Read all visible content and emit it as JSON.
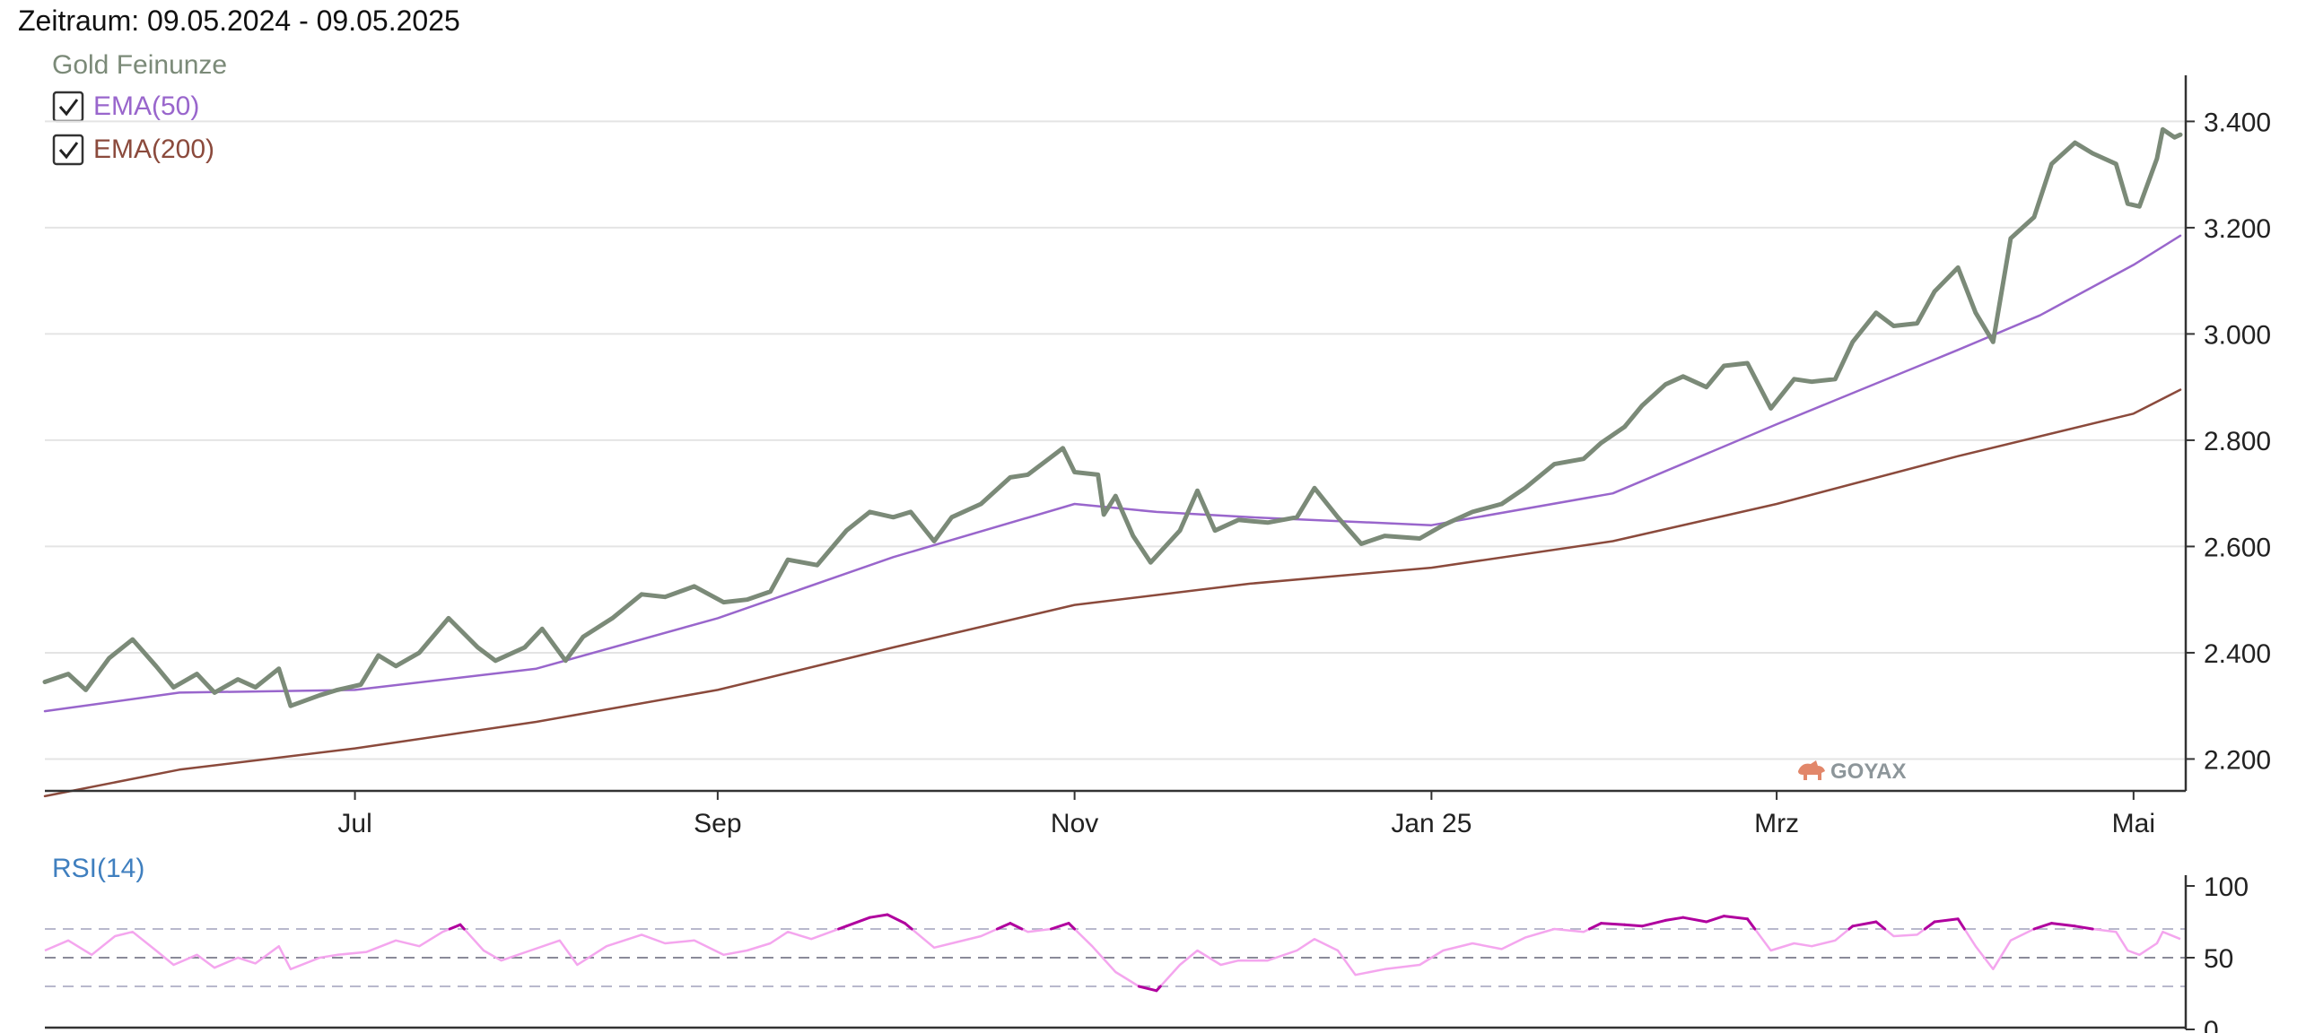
{
  "header": {
    "period": "Zeitraum: 09.05.2024 - 09.05.2025"
  },
  "legend": {
    "main": {
      "label": "Gold Feinunze",
      "color": "#7b8a78"
    },
    "items": [
      {
        "label": "EMA(50)",
        "color": "#9966cc",
        "checked": true
      },
      {
        "label": "EMA(200)",
        "color": "#8b4a3c",
        "checked": true
      }
    ]
  },
  "watermark": {
    "text": "GOYAX",
    "icon": "bull-icon"
  },
  "chart_data": [
    {
      "type": "line",
      "xlim": [
        "2024-05-09",
        "2025-05-09"
      ],
      "ylim": [
        2140,
        3480
      ],
      "y_ticks": [
        2200,
        2400,
        2600,
        2800,
        3000,
        3200,
        3400
      ],
      "y_tick_labels": [
        "2.200",
        "2.400",
        "2.600",
        "2.800",
        "3.000",
        "3.200",
        "3.400"
      ],
      "x_ticks": [
        {
          "date": "2024-07-01",
          "label": "Jul"
        },
        {
          "date": "2024-09-01",
          "label": "Sep"
        },
        {
          "date": "2024-11-01",
          "label": "Nov"
        },
        {
          "date": "2025-01-01",
          "label": "Jan 25"
        },
        {
          "date": "2025-03-01",
          "label": "Mrz"
        },
        {
          "date": "2025-05-01",
          "label": "Mai"
        }
      ],
      "grid": true,
      "legend_position": "top-left",
      "series": [
        {
          "name": "Gold Feinunze",
          "color": "#7b8a78",
          "points": [
            [
              "2024-05-09",
              2345
            ],
            [
              "2024-05-13",
              2360
            ],
            [
              "2024-05-16",
              2330
            ],
            [
              "2024-05-20",
              2390
            ],
            [
              "2024-05-24",
              2425
            ],
            [
              "2024-05-28",
              2375
            ],
            [
              "2024-05-31",
              2335
            ],
            [
              "2024-06-04",
              2360
            ],
            [
              "2024-06-07",
              2325
            ],
            [
              "2024-06-11",
              2350
            ],
            [
              "2024-06-14",
              2335
            ],
            [
              "2024-06-18",
              2370
            ],
            [
              "2024-06-20",
              2300
            ],
            [
              "2024-06-25",
              2320
            ],
            [
              "2024-06-28",
              2330
            ],
            [
              "2024-07-02",
              2340
            ],
            [
              "2024-07-05",
              2395
            ],
            [
              "2024-07-08",
              2375
            ],
            [
              "2024-07-12",
              2400
            ],
            [
              "2024-07-17",
              2465
            ],
            [
              "2024-07-22",
              2410
            ],
            [
              "2024-07-25",
              2385
            ],
            [
              "2024-07-30",
              2410
            ],
            [
              "2024-08-02",
              2445
            ],
            [
              "2024-08-06",
              2385
            ],
            [
              "2024-08-09",
              2430
            ],
            [
              "2024-08-14",
              2465
            ],
            [
              "2024-08-19",
              2510
            ],
            [
              "2024-08-23",
              2505
            ],
            [
              "2024-08-28",
              2525
            ],
            [
              "2024-09-02",
              2495
            ],
            [
              "2024-09-06",
              2500
            ],
            [
              "2024-09-10",
              2515
            ],
            [
              "2024-09-13",
              2575
            ],
            [
              "2024-09-18",
              2565
            ],
            [
              "2024-09-23",
              2630
            ],
            [
              "2024-09-27",
              2665
            ],
            [
              "2024-10-01",
              2655
            ],
            [
              "2024-10-04",
              2665
            ],
            [
              "2024-10-08",
              2610
            ],
            [
              "2024-10-11",
              2655
            ],
            [
              "2024-10-16",
              2680
            ],
            [
              "2024-10-21",
              2730
            ],
            [
              "2024-10-24",
              2735
            ],
            [
              "2024-10-30",
              2785
            ],
            [
              "2024-11-01",
              2740
            ],
            [
              "2024-11-05",
              2735
            ],
            [
              "2024-11-06",
              2660
            ],
            [
              "2024-11-08",
              2695
            ],
            [
              "2024-11-11",
              2620
            ],
            [
              "2024-11-14",
              2570
            ],
            [
              "2024-11-19",
              2630
            ],
            [
              "2024-11-22",
              2705
            ],
            [
              "2024-11-25",
              2630
            ],
            [
              "2024-11-29",
              2650
            ],
            [
              "2024-12-04",
              2645
            ],
            [
              "2024-12-09",
              2655
            ],
            [
              "2024-12-12",
              2710
            ],
            [
              "2024-12-16",
              2655
            ],
            [
              "2024-12-20",
              2605
            ],
            [
              "2024-12-24",
              2620
            ],
            [
              "2024-12-30",
              2615
            ],
            [
              "2025-01-03",
              2640
            ],
            [
              "2025-01-08",
              2665
            ],
            [
              "2025-01-13",
              2680
            ],
            [
              "2025-01-17",
              2710
            ],
            [
              "2025-01-22",
              2755
            ],
            [
              "2025-01-27",
              2765
            ],
            [
              "2025-01-30",
              2795
            ],
            [
              "2025-02-03",
              2825
            ],
            [
              "2025-02-06",
              2865
            ],
            [
              "2025-02-10",
              2905
            ],
            [
              "2025-02-13",
              2920
            ],
            [
              "2025-02-17",
              2900
            ],
            [
              "2025-02-20",
              2940
            ],
            [
              "2025-02-24",
              2945
            ],
            [
              "2025-02-28",
              2860
            ],
            [
              "2025-03-04",
              2915
            ],
            [
              "2025-03-07",
              2910
            ],
            [
              "2025-03-11",
              2915
            ],
            [
              "2025-03-14",
              2985
            ],
            [
              "2025-03-18",
              3040
            ],
            [
              "2025-03-21",
              3015
            ],
            [
              "2025-03-25",
              3020
            ],
            [
              "2025-03-28",
              3080
            ],
            [
              "2025-04-01",
              3125
            ],
            [
              "2025-04-04",
              3040
            ],
            [
              "2025-04-07",
              2985
            ],
            [
              "2025-04-10",
              3180
            ],
            [
              "2025-04-14",
              3220
            ],
            [
              "2025-04-17",
              3320
            ],
            [
              "2025-04-21",
              3360
            ],
            [
              "2025-04-24",
              3340
            ],
            [
              "2025-04-28",
              3320
            ],
            [
              "2025-04-30",
              3245
            ],
            [
              "2025-05-02",
              3240
            ],
            [
              "2025-05-05",
              3330
            ],
            [
              "2025-05-06",
              3385
            ],
            [
              "2025-05-08",
              3370
            ],
            [
              "2025-05-09",
              3375
            ]
          ]
        },
        {
          "name": "EMA(50)",
          "color": "#9966cc",
          "points": [
            [
              "2024-05-09",
              2290
            ],
            [
              "2024-06-01",
              2325
            ],
            [
              "2024-07-01",
              2330
            ],
            [
              "2024-08-01",
              2370
            ],
            [
              "2024-09-01",
              2465
            ],
            [
              "2024-10-01",
              2580
            ],
            [
              "2024-11-01",
              2680
            ],
            [
              "2024-11-15",
              2665
            ],
            [
              "2024-12-01",
              2655
            ],
            [
              "2025-01-01",
              2640
            ],
            [
              "2025-02-01",
              2700
            ],
            [
              "2025-03-01",
              2830
            ],
            [
              "2025-04-01",
              2970
            ],
            [
              "2025-04-15",
              3035
            ],
            [
              "2025-05-01",
              3130
            ],
            [
              "2025-05-09",
              3185
            ]
          ]
        },
        {
          "name": "EMA(200)",
          "color": "#8b4a3c",
          "points": [
            [
              "2024-05-09",
              2130
            ],
            [
              "2024-06-01",
              2180
            ],
            [
              "2024-07-01",
              2220
            ],
            [
              "2024-08-01",
              2270
            ],
            [
              "2024-09-01",
              2330
            ],
            [
              "2024-10-01",
              2410
            ],
            [
              "2024-11-01",
              2490
            ],
            [
              "2024-12-01",
              2530
            ],
            [
              "2025-01-01",
              2560
            ],
            [
              "2025-02-01",
              2610
            ],
            [
              "2025-03-01",
              2680
            ],
            [
              "2025-04-01",
              2770
            ],
            [
              "2025-05-01",
              2850
            ],
            [
              "2025-05-09",
              2895
            ]
          ]
        }
      ]
    },
    {
      "type": "line",
      "title": "RSI(14)",
      "xlim": [
        "2024-05-09",
        "2025-05-09"
      ],
      "ylim": [
        0,
        100
      ],
      "y_ticks": [
        0,
        50,
        100
      ],
      "y_tick_labels": [
        "0",
        "50",
        "100"
      ],
      "reference_lines": [
        30,
        50,
        70
      ],
      "overbought": 70,
      "oversold": 30,
      "series": [
        {
          "name": "RSI(14)",
          "color": "#f4a6ee",
          "extreme_color": "#b0009e",
          "points": [
            [
              "2024-05-09",
              55
            ],
            [
              "2024-05-13",
              62
            ],
            [
              "2024-05-17",
              52
            ],
            [
              "2024-05-21",
              65
            ],
            [
              "2024-05-24",
              68
            ],
            [
              "2024-05-28",
              55
            ],
            [
              "2024-05-31",
              45
            ],
            [
              "2024-06-04",
              52
            ],
            [
              "2024-06-07",
              43
            ],
            [
              "2024-06-11",
              50
            ],
            [
              "2024-06-14",
              46
            ],
            [
              "2024-06-18",
              58
            ],
            [
              "2024-06-20",
              42
            ],
            [
              "2024-06-25",
              50
            ],
            [
              "2024-06-28",
              52
            ],
            [
              "2024-07-03",
              54
            ],
            [
              "2024-07-08",
              62
            ],
            [
              "2024-07-12",
              58
            ],
            [
              "2024-07-16",
              68
            ],
            [
              "2024-07-19",
              73
            ],
            [
              "2024-07-23",
              55
            ],
            [
              "2024-07-26",
              48
            ],
            [
              "2024-07-31",
              55
            ],
            [
              "2024-08-05",
              62
            ],
            [
              "2024-08-08",
              45
            ],
            [
              "2024-08-13",
              58
            ],
            [
              "2024-08-19",
              66
            ],
            [
              "2024-08-23",
              60
            ],
            [
              "2024-08-28",
              62
            ],
            [
              "2024-09-02",
              52
            ],
            [
              "2024-09-06",
              55
            ],
            [
              "2024-09-10",
              60
            ],
            [
              "2024-09-13",
              68
            ],
            [
              "2024-09-17",
              63
            ],
            [
              "2024-09-23",
              72
            ],
            [
              "2024-09-27",
              78
            ],
            [
              "2024-09-30",
              80
            ],
            [
              "2024-10-03",
              74
            ],
            [
              "2024-10-08",
              57
            ],
            [
              "2024-10-11",
              60
            ],
            [
              "2024-10-16",
              65
            ],
            [
              "2024-10-21",
              74
            ],
            [
              "2024-10-24",
              68
            ],
            [
              "2024-10-28",
              70
            ],
            [
              "2024-10-31",
              74
            ],
            [
              "2024-11-04",
              58
            ],
            [
              "2024-11-08",
              40
            ],
            [
              "2024-11-12",
              30
            ],
            [
              "2024-11-15",
              27
            ],
            [
              "2024-11-19",
              45
            ],
            [
              "2024-11-22",
              55
            ],
            [
              "2024-11-26",
              45
            ],
            [
              "2024-11-29",
              48
            ],
            [
              "2024-12-04",
              48
            ],
            [
              "2024-12-09",
              55
            ],
            [
              "2024-12-12",
              63
            ],
            [
              "2024-12-16",
              55
            ],
            [
              "2024-12-19",
              38
            ],
            [
              "2024-12-24",
              42
            ],
            [
              "2024-12-30",
              45
            ],
            [
              "2025-01-03",
              55
            ],
            [
              "2025-01-08",
              60
            ],
            [
              "2025-01-13",
              56
            ],
            [
              "2025-01-17",
              64
            ],
            [
              "2025-01-22",
              70
            ],
            [
              "2025-01-27",
              68
            ],
            [
              "2025-01-30",
              74
            ],
            [
              "2025-02-03",
              73
            ],
            [
              "2025-02-06",
              72
            ],
            [
              "2025-02-10",
              76
            ],
            [
              "2025-02-13",
              78
            ],
            [
              "2025-02-17",
              75
            ],
            [
              "2025-02-20",
              79
            ],
            [
              "2025-02-24",
              77
            ],
            [
              "2025-02-28",
              55
            ],
            [
              "2025-03-04",
              60
            ],
            [
              "2025-03-07",
              58
            ],
            [
              "2025-03-11",
              62
            ],
            [
              "2025-03-14",
              72
            ],
            [
              "2025-03-18",
              75
            ],
            [
              "2025-03-21",
              65
            ],
            [
              "2025-03-25",
              66
            ],
            [
              "2025-03-28",
              75
            ],
            [
              "2025-04-01",
              77
            ],
            [
              "2025-04-04",
              58
            ],
            [
              "2025-04-07",
              42
            ],
            [
              "2025-04-10",
              62
            ],
            [
              "2025-04-14",
              70
            ],
            [
              "2025-04-17",
              74
            ],
            [
              "2025-04-21",
              72
            ],
            [
              "2025-04-24",
              70
            ],
            [
              "2025-04-28",
              68
            ],
            [
              "2025-04-30",
              55
            ],
            [
              "2025-05-02",
              52
            ],
            [
              "2025-05-05",
              60
            ],
            [
              "2025-05-06",
              68
            ],
            [
              "2025-05-09",
              63
            ]
          ]
        }
      ]
    }
  ]
}
